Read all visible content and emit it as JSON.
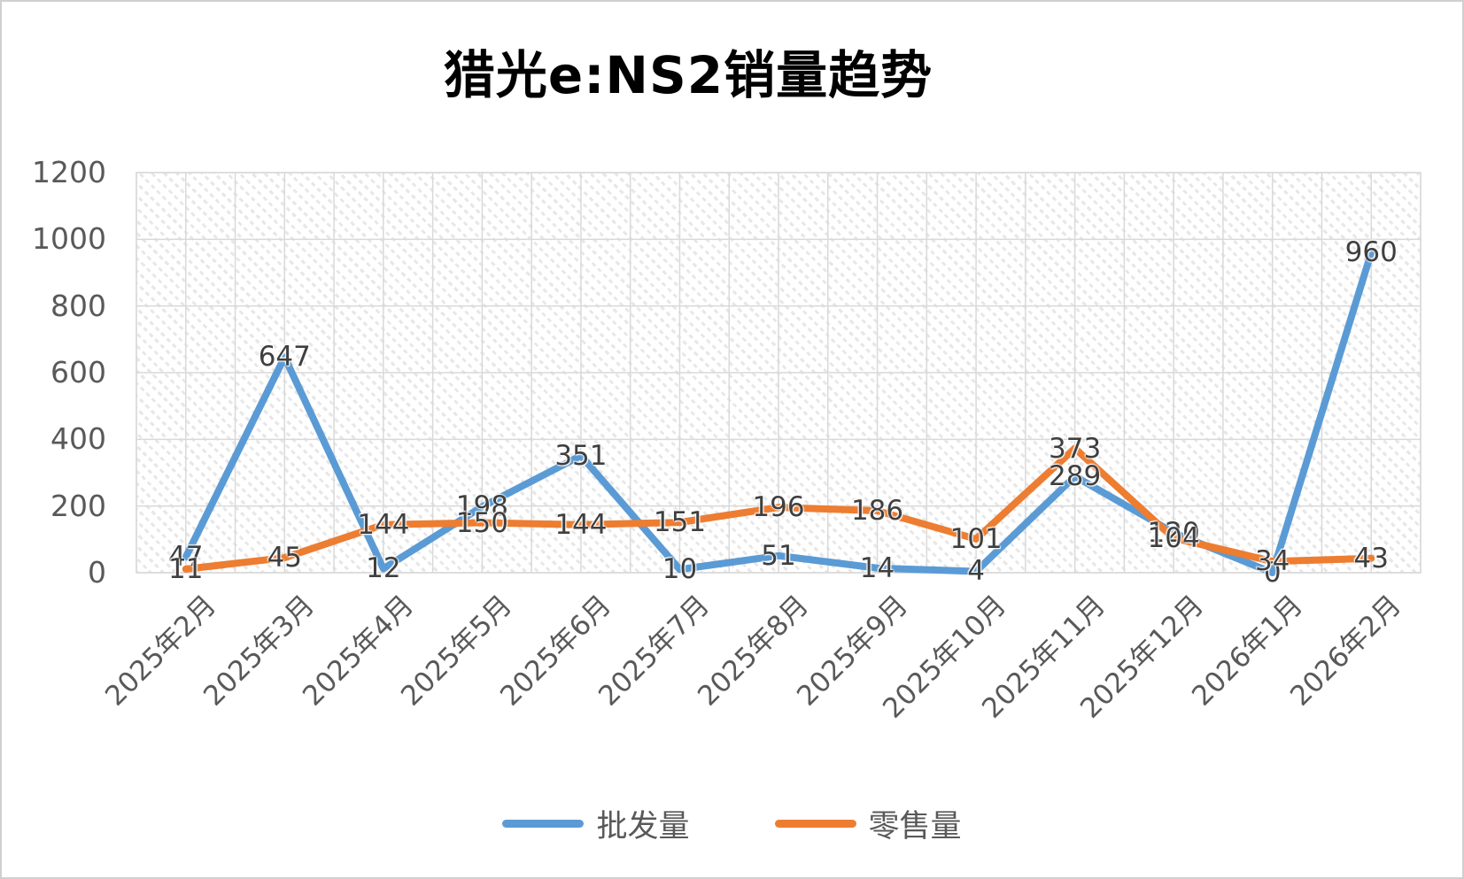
{
  "chart_data": {
    "type": "line",
    "title": "猎光e:NS2销量趋势",
    "categories": [
      "2025年2月",
      "2025年3月",
      "2025年4月",
      "2025年5月",
      "2025年6月",
      "2025年7月",
      "2025年8月",
      "2025年9月",
      "2025年10月",
      "2025年11月",
      "2025年12月",
      "2026年1月",
      "2026年2月"
    ],
    "series": [
      {
        "name": "批发量",
        "color": "#5B9BD5",
        "values": [
          47,
          647,
          12,
          198,
          351,
          10,
          51,
          14,
          4,
          289,
          120,
          0,
          960
        ]
      },
      {
        "name": "零售量",
        "color": "#ED7D31",
        "values": [
          11,
          45,
          144,
          150,
          144,
          151,
          196,
          186,
          101,
          373,
          104,
          34,
          43
        ]
      }
    ],
    "ylabel": "",
    "xlabel": "",
    "ylim": [
      0,
      1200
    ],
    "yticks": [
      0,
      200,
      400,
      600,
      800,
      1000,
      1200
    ],
    "grid": "on",
    "legend_position": "bottom",
    "data_labels": "centered on points",
    "plot_background": "diagonal hatch pattern"
  },
  "style": {
    "gridline_color": "#d9d9d9",
    "tick_label_color": "#595959",
    "data_label_color": "#3f3f3f",
    "title_color": "#000000"
  }
}
